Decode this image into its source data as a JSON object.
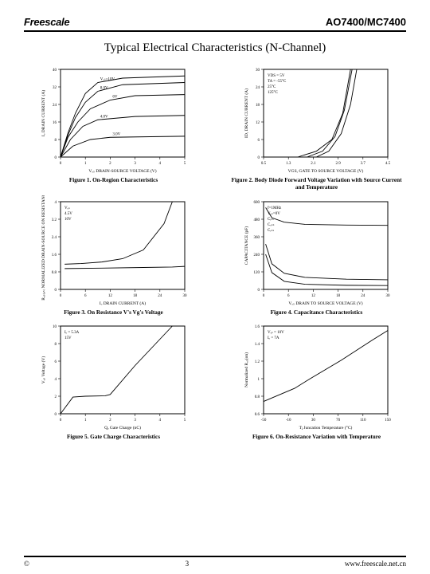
{
  "header": {
    "brand": "Freescale",
    "part": "AO7400/MC7400"
  },
  "title": "Typical Electrical Characteristics (N-Channel)",
  "footer": {
    "copyright": "©",
    "page": "3",
    "url": "www.freescale.net.cn"
  },
  "figures": [
    {
      "i": 1,
      "caption": "Figure 1. On-Region Characteristics",
      "xlabel": "Vₒₛ DRAIN-SOURCE VOLTAGE (V)",
      "ylabel": "Iₒ DRAIN CURRENT (A)",
      "xlim": [
        0,
        5
      ],
      "ylim": [
        0,
        40
      ],
      "lines": [
        {
          "pts": [
            [
              0,
              0
            ],
            [
              0.3,
              11
            ],
            [
              0.6,
              20
            ],
            [
              1,
              29
            ],
            [
              1.5,
              34
            ],
            [
              2.5,
              36
            ],
            [
              5,
              37
            ]
          ],
          "label": "Vₒₛ=10V"
        },
        {
          "pts": [
            [
              0,
              0
            ],
            [
              0.3,
              10
            ],
            [
              0.6,
              18
            ],
            [
              1,
              25
            ],
            [
              1.5,
              30
            ],
            [
              2.5,
              33
            ],
            [
              5,
              34
            ]
          ],
          "label": "8.0V"
        },
        {
          "pts": [
            [
              0,
              0
            ],
            [
              0.3,
              9
            ],
            [
              0.7,
              16
            ],
            [
              1.2,
              22
            ],
            [
              2,
              26
            ],
            [
              3,
              28
            ],
            [
              5,
              28.5
            ]
          ],
          "label": "6V"
        },
        {
          "pts": [
            [
              0,
              0
            ],
            [
              0.4,
              8
            ],
            [
              0.9,
              14
            ],
            [
              1.5,
              17
            ],
            [
              3,
              18.5
            ],
            [
              5,
              19
            ]
          ],
          "label": "4.0V"
        },
        {
          "pts": [
            [
              0,
              0
            ],
            [
              0.5,
              5
            ],
            [
              1.2,
              8
            ],
            [
              2,
              9
            ],
            [
              5,
              9.5
            ]
          ],
          "label": "3.0V"
        }
      ]
    },
    {
      "i": 2,
      "caption": "Figure 2. Body Diode Forward Voltage Variation with Source Current and Temperature",
      "xlabel": "VGS, GATE TO SOURCE VOLTAGE (V)",
      "ylabel": "ID, DRAIN CURRENT (A)",
      "xlim": [
        0.5,
        4.5
      ],
      "ylim": [
        0,
        30
      ],
      "notes": [
        "VDS = 5V",
        "TA = -55°C",
        "25°C",
        "125°C"
      ],
      "lines": [
        {
          "pts": [
            [
              2.2,
              0
            ],
            [
              2.6,
              2
            ],
            [
              3.0,
              8
            ],
            [
              3.3,
              18
            ],
            [
              3.5,
              30
            ]
          ]
        },
        {
          "pts": [
            [
              1.9,
              0
            ],
            [
              2.4,
              2
            ],
            [
              2.8,
              7
            ],
            [
              3.1,
              16
            ],
            [
              3.35,
              30
            ]
          ]
        },
        {
          "pts": [
            [
              1.6,
              0
            ],
            [
              2.2,
              2
            ],
            [
              2.7,
              6
            ],
            [
              3.05,
              15
            ],
            [
              3.3,
              30
            ]
          ]
        }
      ]
    },
    {
      "i": 3,
      "caption": "Figure 3. On Resistance V's Vg's Voltage",
      "xlabel": "Iₒ DRAIN CURRENT (A)",
      "ylabel": "Rₒₛ₍ₒₙ₎ NORMALIZED DRAIN-SOURCE ON RESISTANCE",
      "xlim": [
        0,
        30
      ],
      "ylim": [
        0,
        4
      ],
      "notes": [
        "Vₒₛ",
        "4.5V",
        "10V"
      ],
      "lines": [
        {
          "pts": [
            [
              1,
              1.15
            ],
            [
              5,
              1.18
            ],
            [
              10,
              1.25
            ],
            [
              15,
              1.4
            ],
            [
              20,
              1.8
            ],
            [
              25,
              3.0
            ],
            [
              27,
              4.0
            ]
          ]
        },
        {
          "pts": [
            [
              1,
              0.95
            ],
            [
              10,
              0.97
            ],
            [
              20,
              1.0
            ],
            [
              27,
              1.02
            ],
            [
              30,
              1.05
            ]
          ]
        }
      ]
    },
    {
      "i": 4,
      "caption": "Figure 4. Capacitance Characteristics",
      "xlabel": "Vₒₛ DRAIN TO SOURCE VOLTAGE (V)",
      "ylabel": "CAPACITANCE (pF)",
      "xlim": [
        0,
        30
      ],
      "ylim": [
        0,
        600
      ],
      "notes": [
        "f=1MHz",
        "Vₒₛ=0V",
        "Cᵢₛₛ",
        "Cₒₛₛ",
        "Cᵣₛₛ"
      ],
      "lines": [
        {
          "pts": [
            [
              0.5,
              560
            ],
            [
              2,
              490
            ],
            [
              5,
              460
            ],
            [
              10,
              445
            ],
            [
              20,
              440
            ],
            [
              30,
              438
            ]
          ]
        },
        {
          "pts": [
            [
              0.5,
              310
            ],
            [
              2,
              175
            ],
            [
              5,
              110
            ],
            [
              10,
              82
            ],
            [
              20,
              70
            ],
            [
              30,
              66
            ]
          ]
        },
        {
          "pts": [
            [
              0.5,
              240
            ],
            [
              2,
              115
            ],
            [
              5,
              55
            ],
            [
              10,
              35
            ],
            [
              20,
              28
            ],
            [
              30,
              26
            ]
          ]
        }
      ]
    },
    {
      "i": 5,
      "caption": "Figure 5. Gate Charge Characteristics",
      "xlabel": "Qᵧ Gate Charge (nC)",
      "ylabel": "Vᵧₛ Voltage (V)",
      "xlim": [
        0,
        5
      ],
      "ylim": [
        0,
        10
      ],
      "notes": [
        "Iₒ = 5.3A",
        "15V"
      ],
      "lines": [
        {
          "pts": [
            [
              0,
              0
            ],
            [
              0.5,
              1.9
            ],
            [
              1.0,
              2.0
            ],
            [
              1.8,
              2.05
            ],
            [
              2.0,
              2.2
            ],
            [
              3,
              5.5
            ],
            [
              4,
              8.5
            ],
            [
              4.5,
              10
            ]
          ]
        }
      ]
    },
    {
      "i": 6,
      "caption": "Figure 6. On-Resistance Variation with Temperature",
      "xlabel": "Tⱼ Juncation Temperature (°C)",
      "ylabel": "Normalized Rₒₛ(on)",
      "xlim": [
        -50,
        150
      ],
      "ylim": [
        0.6,
        1.6
      ],
      "notes": [
        "Vᵧₛ = 10V",
        "Iₒ = 7A"
      ],
      "lines": [
        {
          "pts": [
            [
              -50,
              0.74
            ],
            [
              0,
              0.89
            ],
            [
              25,
              1.0
            ],
            [
              75,
              1.21
            ],
            [
              125,
              1.44
            ],
            [
              150,
              1.55
            ]
          ]
        }
      ]
    }
  ]
}
